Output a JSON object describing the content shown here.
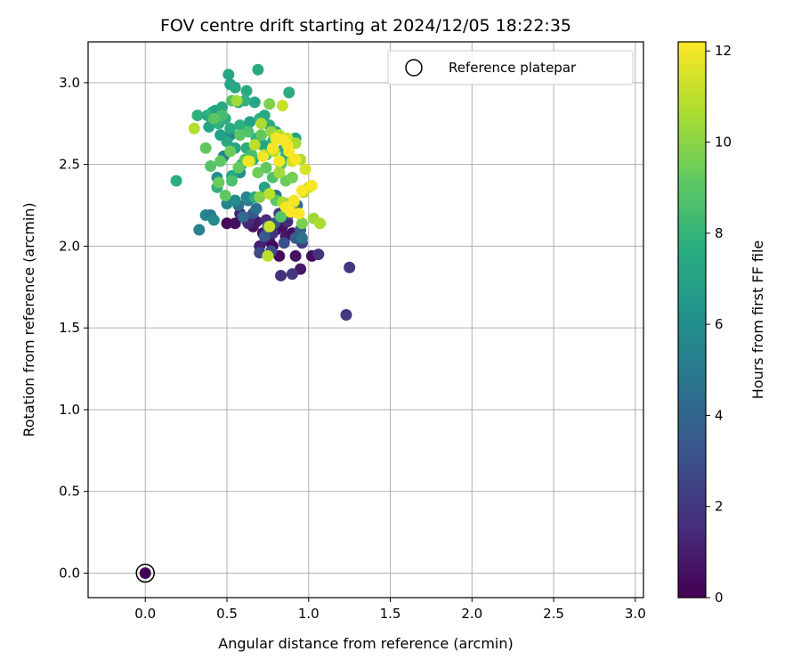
{
  "chart_data": {
    "type": "scatter",
    "title": "FOV centre drift starting at 2024/12/05 18:22:35",
    "xlabel": "Angular distance from reference (arcmin)",
    "ylabel": "Rotation from reference (arcmin)",
    "xlim": [
      -0.35,
      3.05
    ],
    "ylim": [
      -0.15,
      3.25
    ],
    "xticks": [
      0.0,
      0.5,
      1.0,
      1.5,
      2.0,
      2.5,
      3.0
    ],
    "xtick_labels": [
      "0.0",
      "0.5",
      "1.0",
      "1.5",
      "2.0",
      "2.5",
      "3.0"
    ],
    "yticks": [
      0.0,
      0.5,
      1.0,
      1.5,
      2.0,
      2.5,
      3.0
    ],
    "ytick_labels": [
      "0.0",
      "0.5",
      "1.0",
      "1.5",
      "2.0",
      "2.5",
      "3.0"
    ],
    "grid": true,
    "legend_position": "top-right",
    "legend": [
      {
        "label": "Reference platepar",
        "marker": "open-circle"
      }
    ],
    "colorbar": {
      "label": "Hours from first FF file",
      "colormap": "viridis",
      "range": [
        0,
        12.2
      ],
      "ticks": [
        0,
        2,
        4,
        6,
        8,
        10,
        12
      ],
      "tick_labels": [
        "0",
        "2",
        "4",
        "6",
        "8",
        "10",
        "12"
      ]
    },
    "reference_point": {
      "x": 0.0,
      "y": 0.0,
      "c": 0.0
    },
    "points": [
      {
        "x": 0.5,
        "y": 2.14,
        "c": 0.3
      },
      {
        "x": 0.55,
        "y": 2.14,
        "c": 0.5
      },
      {
        "x": 0.62,
        "y": 2.16,
        "c": 0.4
      },
      {
        "x": 0.66,
        "y": 2.12,
        "c": 0.6
      },
      {
        "x": 0.68,
        "y": 2.15,
        "c": 0.8
      },
      {
        "x": 0.72,
        "y": 2.08,
        "c": 0.5
      },
      {
        "x": 0.76,
        "y": 2.03,
        "c": 0.9
      },
      {
        "x": 0.8,
        "y": 2.1,
        "c": 0.4
      },
      {
        "x": 0.84,
        "y": 2.12,
        "c": 0.6
      },
      {
        "x": 0.86,
        "y": 2.06,
        "c": 0.7
      },
      {
        "x": 0.9,
        "y": 2.08,
        "c": 0.5
      },
      {
        "x": 0.82,
        "y": 1.94,
        "c": 0.3
      },
      {
        "x": 0.92,
        "y": 1.94,
        "c": 0.6
      },
      {
        "x": 0.95,
        "y": 1.86,
        "c": 0.8
      },
      {
        "x": 1.02,
        "y": 1.94,
        "c": 0.4
      },
      {
        "x": 0.78,
        "y": 2.0,
        "c": 0.2
      },
      {
        "x": 0.7,
        "y": 2.0,
        "c": 1.0
      },
      {
        "x": 0.58,
        "y": 2.2,
        "c": 1.2
      },
      {
        "x": 0.63,
        "y": 2.14,
        "c": 1.4
      },
      {
        "x": 0.74,
        "y": 2.16,
        "c": 1.6
      },
      {
        "x": 0.78,
        "y": 2.08,
        "c": 1.8
      },
      {
        "x": 0.83,
        "y": 1.82,
        "c": 1.7
      },
      {
        "x": 0.9,
        "y": 1.83,
        "c": 1.9
      },
      {
        "x": 1.06,
        "y": 1.95,
        "c": 1.8
      },
      {
        "x": 1.23,
        "y": 1.58,
        "c": 2.0
      },
      {
        "x": 1.25,
        "y": 1.87,
        "c": 1.9
      },
      {
        "x": 0.87,
        "y": 2.15,
        "c": 1.5
      },
      {
        "x": 0.82,
        "y": 2.2,
        "c": 2.1
      },
      {
        "x": 0.92,
        "y": 2.22,
        "c": 2.3
      },
      {
        "x": 0.96,
        "y": 2.02,
        "c": 2.2
      },
      {
        "x": 0.7,
        "y": 1.96,
        "c": 2.7
      },
      {
        "x": 0.77,
        "y": 1.97,
        "c": 2.9
      },
      {
        "x": 0.85,
        "y": 2.02,
        "c": 3.0
      },
      {
        "x": 0.66,
        "y": 2.2,
        "c": 3.2
      },
      {
        "x": 0.73,
        "y": 2.06,
        "c": 3.5
      },
      {
        "x": 0.79,
        "y": 2.14,
        "c": 3.3
      },
      {
        "x": 0.92,
        "y": 2.05,
        "c": 3.6
      },
      {
        "x": 0.95,
        "y": 2.1,
        "c": 3.7
      },
      {
        "x": 0.88,
        "y": 2.2,
        "c": 3.1
      },
      {
        "x": 0.6,
        "y": 2.18,
        "c": 4.2
      },
      {
        "x": 0.68,
        "y": 2.23,
        "c": 4.4
      },
      {
        "x": 0.75,
        "y": 2.12,
        "c": 4.6
      },
      {
        "x": 0.8,
        "y": 2.31,
        "c": 4.8
      },
      {
        "x": 0.57,
        "y": 2.25,
        "c": 4.5
      },
      {
        "x": 0.63,
        "y": 2.28,
        "c": 4.9
      },
      {
        "x": 0.93,
        "y": 2.25,
        "c": 4.3
      },
      {
        "x": 0.96,
        "y": 2.05,
        "c": 4.7
      },
      {
        "x": 0.33,
        "y": 2.1,
        "c": 5.4
      },
      {
        "x": 0.37,
        "y": 2.19,
        "c": 5.6
      },
      {
        "x": 0.4,
        "y": 2.19,
        "c": 5.2
      },
      {
        "x": 0.42,
        "y": 2.16,
        "c": 5.8
      },
      {
        "x": 0.5,
        "y": 2.26,
        "c": 5.5
      },
      {
        "x": 0.55,
        "y": 2.28,
        "c": 5.9
      },
      {
        "x": 0.62,
        "y": 2.3,
        "c": 5.7
      },
      {
        "x": 0.48,
        "y": 2.55,
        "c": 5.3
      },
      {
        "x": 0.52,
        "y": 2.68,
        "c": 5.6
      },
      {
        "x": 0.44,
        "y": 2.42,
        "c": 6.0
      },
      {
        "x": 0.58,
        "y": 2.45,
        "c": 6.2
      },
      {
        "x": 0.51,
        "y": 3.05,
        "c": 7.2
      },
      {
        "x": 0.69,
        "y": 3.08,
        "c": 7.4
      },
      {
        "x": 0.52,
        "y": 2.99,
        "c": 7.1
      },
      {
        "x": 0.55,
        "y": 2.97,
        "c": 7.3
      },
      {
        "x": 0.62,
        "y": 2.95,
        "c": 7.5
      },
      {
        "x": 0.88,
        "y": 2.94,
        "c": 7.6
      },
      {
        "x": 0.57,
        "y": 2.88,
        "c": 7.0
      },
      {
        "x": 0.67,
        "y": 2.88,
        "c": 7.2
      },
      {
        "x": 0.61,
        "y": 2.89,
        "c": 7.8
      },
      {
        "x": 0.32,
        "y": 2.8,
        "c": 7.7
      },
      {
        "x": 0.38,
        "y": 2.8,
        "c": 7.4
      },
      {
        "x": 0.41,
        "y": 2.82,
        "c": 7.9
      },
      {
        "x": 0.43,
        "y": 2.83,
        "c": 7.1
      },
      {
        "x": 0.47,
        "y": 2.85,
        "c": 7.3
      },
      {
        "x": 0.49,
        "y": 2.78,
        "c": 7.6
      },
      {
        "x": 0.39,
        "y": 2.73,
        "c": 7.2
      },
      {
        "x": 0.45,
        "y": 2.75,
        "c": 7.8
      },
      {
        "x": 0.52,
        "y": 2.72,
        "c": 7.5
      },
      {
        "x": 0.58,
        "y": 2.74,
        "c": 7.7
      },
      {
        "x": 0.64,
        "y": 2.76,
        "c": 7.0
      },
      {
        "x": 0.7,
        "y": 2.78,
        "c": 7.9
      },
      {
        "x": 0.73,
        "y": 2.8,
        "c": 7.4
      },
      {
        "x": 0.76,
        "y": 2.74,
        "c": 7.6
      },
      {
        "x": 0.8,
        "y": 2.7,
        "c": 7.3
      },
      {
        "x": 0.68,
        "y": 2.66,
        "c": 7.8
      },
      {
        "x": 0.72,
        "y": 2.62,
        "c": 7.1
      },
      {
        "x": 0.62,
        "y": 2.6,
        "c": 7.5
      },
      {
        "x": 0.55,
        "y": 2.6,
        "c": 7.2
      },
      {
        "x": 0.5,
        "y": 2.64,
        "c": 7.4
      },
      {
        "x": 0.46,
        "y": 2.68,
        "c": 7.0
      },
      {
        "x": 0.19,
        "y": 2.4,
        "c": 7.6
      },
      {
        "x": 0.44,
        "y": 2.36,
        "c": 7.7
      },
      {
        "x": 0.53,
        "y": 2.43,
        "c": 7.3
      },
      {
        "x": 0.59,
        "y": 2.5,
        "c": 7.9
      },
      {
        "x": 0.66,
        "y": 2.53,
        "c": 7.5
      },
      {
        "x": 0.74,
        "y": 2.56,
        "c": 7.2
      },
      {
        "x": 0.78,
        "y": 2.64,
        "c": 7.8
      },
      {
        "x": 0.85,
        "y": 2.6,
        "c": 7.4
      },
      {
        "x": 0.92,
        "y": 2.66,
        "c": 7.1
      },
      {
        "x": 0.67,
        "y": 2.3,
        "c": 7.6
      },
      {
        "x": 0.73,
        "y": 2.36,
        "c": 7.0
      },
      {
        "x": 0.86,
        "y": 2.55,
        "c": 7.7
      },
      {
        "x": 0.47,
        "y": 2.8,
        "c": 8.5
      },
      {
        "x": 0.53,
        "y": 2.89,
        "c": 8.8
      },
      {
        "x": 0.42,
        "y": 2.78,
        "c": 9.0
      },
      {
        "x": 0.37,
        "y": 2.6,
        "c": 9.2
      },
      {
        "x": 0.4,
        "y": 2.49,
        "c": 8.9
      },
      {
        "x": 0.45,
        "y": 2.39,
        "c": 9.4
      },
      {
        "x": 0.49,
        "y": 2.31,
        "c": 9.1
      },
      {
        "x": 0.53,
        "y": 2.4,
        "c": 8.7
      },
      {
        "x": 0.57,
        "y": 2.48,
        "c": 9.3
      },
      {
        "x": 0.61,
        "y": 2.53,
        "c": 9.0
      },
      {
        "x": 0.65,
        "y": 2.56,
        "c": 8.6
      },
      {
        "x": 0.69,
        "y": 2.45,
        "c": 9.5
      },
      {
        "x": 0.74,
        "y": 2.48,
        "c": 9.2
      },
      {
        "x": 0.78,
        "y": 2.42,
        "c": 8.8
      },
      {
        "x": 0.83,
        "y": 2.5,
        "c": 9.1
      },
      {
        "x": 0.86,
        "y": 2.4,
        "c": 9.4
      },
      {
        "x": 0.9,
        "y": 2.42,
        "c": 9.6
      },
      {
        "x": 0.8,
        "y": 2.28,
        "c": 9.0
      },
      {
        "x": 0.83,
        "y": 2.18,
        "c": 8.9
      },
      {
        "x": 0.88,
        "y": 2.26,
        "c": 9.3
      },
      {
        "x": 0.96,
        "y": 2.14,
        "c": 9.7
      },
      {
        "x": 0.71,
        "y": 2.68,
        "c": 9.2
      },
      {
        "x": 0.76,
        "y": 2.87,
        "c": 9.8
      },
      {
        "x": 0.63,
        "y": 2.7,
        "c": 8.7
      },
      {
        "x": 0.58,
        "y": 2.68,
        "c": 9.0
      },
      {
        "x": 0.52,
        "y": 2.58,
        "c": 9.5
      },
      {
        "x": 0.46,
        "y": 2.52,
        "c": 9.1
      },
      {
        "x": 0.7,
        "y": 2.3,
        "c": 9.9
      },
      {
        "x": 0.9,
        "y": 2.52,
        "c": 9.6
      },
      {
        "x": 0.3,
        "y": 2.72,
        "c": 10.8
      },
      {
        "x": 0.56,
        "y": 2.89,
        "c": 10.5
      },
      {
        "x": 0.84,
        "y": 2.86,
        "c": 11.2
      },
      {
        "x": 0.71,
        "y": 2.75,
        "c": 10.7
      },
      {
        "x": 0.77,
        "y": 2.7,
        "c": 10.3
      },
      {
        "x": 0.82,
        "y": 2.68,
        "c": 10.9
      },
      {
        "x": 0.87,
        "y": 2.66,
        "c": 11.4
      },
      {
        "x": 0.92,
        "y": 2.63,
        "c": 10.6
      },
      {
        "x": 0.67,
        "y": 2.62,
        "c": 11.0
      },
      {
        "x": 0.73,
        "y": 2.56,
        "c": 10.4
      },
      {
        "x": 0.79,
        "y": 2.58,
        "c": 11.1
      },
      {
        "x": 0.64,
        "y": 2.52,
        "c": 10.8
      },
      {
        "x": 0.9,
        "y": 2.52,
        "c": 11.3
      },
      {
        "x": 0.95,
        "y": 2.53,
        "c": 10.7
      },
      {
        "x": 0.98,
        "y": 2.47,
        "c": 11.5
      },
      {
        "x": 0.82,
        "y": 2.45,
        "c": 10.5
      },
      {
        "x": 0.76,
        "y": 2.32,
        "c": 11.0
      },
      {
        "x": 0.84,
        "y": 2.27,
        "c": 10.6
      },
      {
        "x": 0.88,
        "y": 2.23,
        "c": 11.2
      },
      {
        "x": 0.91,
        "y": 2.27,
        "c": 10.9
      },
      {
        "x": 0.94,
        "y": 2.2,
        "c": 11.4
      },
      {
        "x": 0.97,
        "y": 2.33,
        "c": 10.8
      },
      {
        "x": 1.0,
        "y": 2.36,
        "c": 11.1
      },
      {
        "x": 1.03,
        "y": 2.17,
        "c": 10.4
      },
      {
        "x": 1.07,
        "y": 2.14,
        "c": 10.7
      },
      {
        "x": 0.76,
        "y": 2.12,
        "c": 11.3
      },
      {
        "x": 0.75,
        "y": 1.94,
        "c": 11.0
      },
      {
        "x": 0.72,
        "y": 2.55,
        "c": 12.0
      },
      {
        "x": 0.78,
        "y": 2.6,
        "c": 12.1
      },
      {
        "x": 0.63,
        "y": 2.52,
        "c": 12.0
      },
      {
        "x": 0.84,
        "y": 2.65,
        "c": 12.2
      },
      {
        "x": 0.87,
        "y": 2.62,
        "c": 12.1
      },
      {
        "x": 0.8,
        "y": 2.66,
        "c": 12.0
      },
      {
        "x": 0.92,
        "y": 2.53,
        "c": 12.1
      },
      {
        "x": 0.96,
        "y": 2.34,
        "c": 12.2
      },
      {
        "x": 1.02,
        "y": 2.37,
        "c": 12.1
      },
      {
        "x": 0.86,
        "y": 2.24,
        "c": 12.0
      },
      {
        "x": 0.89,
        "y": 2.21,
        "c": 12.2
      },
      {
        "x": 0.94,
        "y": 2.2,
        "c": 12.1
      },
      {
        "x": 0.82,
        "y": 2.52,
        "c": 12.1
      },
      {
        "x": 0.88,
        "y": 2.58,
        "c": 12.2
      },
      {
        "x": 0.91,
        "y": 2.28,
        "c": 12.0
      }
    ]
  }
}
